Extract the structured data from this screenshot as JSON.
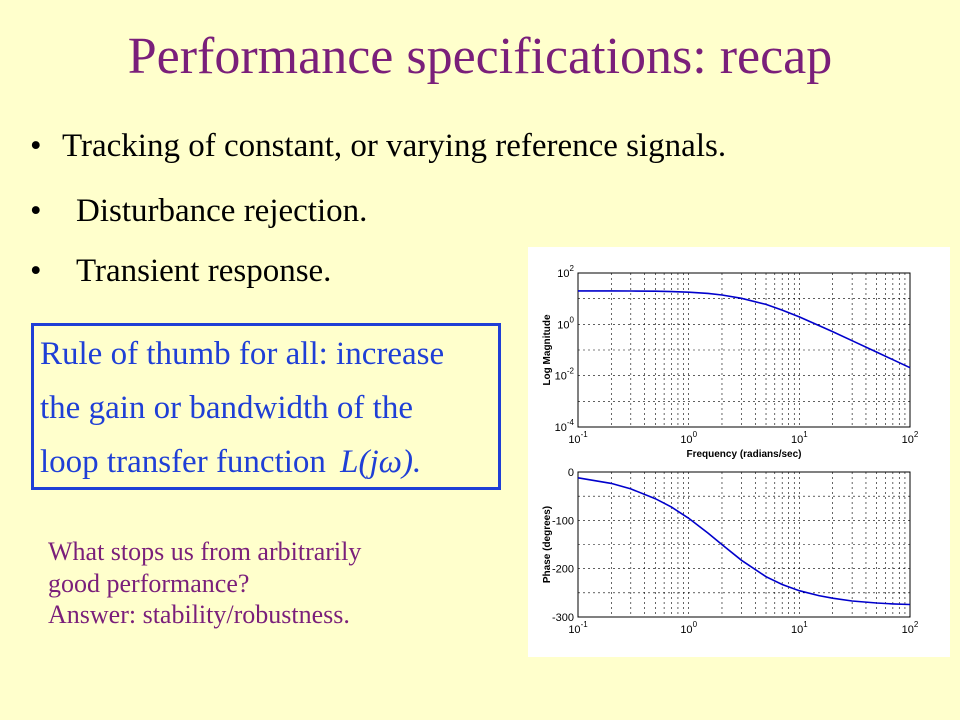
{
  "title": "Performance specifications: recap",
  "bullets": [
    "Tracking of constant, or varying reference signals.",
    "Disturbance rejection.",
    "Transient response."
  ],
  "bullet_marker": "•",
  "rule_box": {
    "line1": "Rule of thumb for all: increase",
    "line2": "the gain or bandwidth of the",
    "line3": "loop transfer function",
    "math": "L(jω).",
    "border_color": "#1f3fd6"
  },
  "question": {
    "line1": "What stops us from arbitrarily",
    "line2": "good performance?",
    "line3": "Answer:  stability/robustness."
  },
  "colors": {
    "background": "#ffffcc",
    "title": "#7a1f7a",
    "question": "#7a1f7a",
    "curve": "#0000cc"
  },
  "chart_data": [
    {
      "type": "line",
      "scale": "log-log",
      "title": "",
      "xlabel": "Frequency (radians/sec)",
      "ylabel": "Log Magnitude",
      "xlim": [
        0.1,
        100
      ],
      "ylim": [
        0.0001,
        100
      ],
      "x_tick_labels": [
        {
          "base": "10",
          "exp": "-1"
        },
        {
          "base": "10",
          "exp": "0"
        },
        {
          "base": "10",
          "exp": "1"
        },
        {
          "base": "10",
          "exp": "2"
        }
      ],
      "y_tick_labels": [
        {
          "base": "10",
          "exp": "2"
        },
        {
          "base": "10",
          "exp": "0"
        },
        {
          "base": "10",
          "exp": "-2"
        },
        {
          "base": "10",
          "exp": "-4"
        }
      ],
      "grid": true,
      "series": [
        {
          "x": [
            0.1,
            0.2,
            0.3,
            0.5,
            0.7,
            1,
            1.5,
            2,
            3,
            5,
            7,
            10,
            15,
            20,
            30,
            50,
            70,
            100
          ],
          "y": [
            20,
            20,
            19.9,
            19.5,
            18.9,
            17.9,
            16,
            13.9,
            10.3,
            5.96,
            3.6,
            1.94,
            0.9,
            0.52,
            0.23,
            0.083,
            0.042,
            0.0204
          ]
        }
      ]
    },
    {
      "type": "line",
      "scale": "semilogx",
      "title": "",
      "xlabel": "",
      "ylabel": "Phase (degrees)",
      "xlim": [
        0.1,
        100
      ],
      "ylim": [
        -300,
        0
      ],
      "x_tick_labels": [
        {
          "base": "10",
          "exp": "-1"
        },
        {
          "base": "10",
          "exp": "0"
        },
        {
          "base": "10",
          "exp": "1"
        },
        {
          "base": "10",
          "exp": "2"
        }
      ],
      "y_tick_labels": [
        "0",
        "-100",
        "-200",
        "-300"
      ],
      "y_ticks": [
        0,
        -100,
        -200,
        -300
      ],
      "grid": true,
      "series": [
        {
          "x": [
            0.1,
            0.2,
            0.3,
            0.5,
            0.7,
            1,
            1.5,
            2,
            3,
            5,
            7,
            10,
            15,
            20,
            30,
            50,
            70,
            100
          ],
          "y": [
            -11.9,
            -23.6,
            -34.9,
            -55.3,
            -72.7,
            -95.7,
            -126.9,
            -150.2,
            -182.6,
            -216.7,
            -232.7,
            -245.5,
            -255.8,
            -261.2,
            -266.8,
            -271.0,
            -272.9,
            -274.2
          ]
        }
      ]
    }
  ]
}
